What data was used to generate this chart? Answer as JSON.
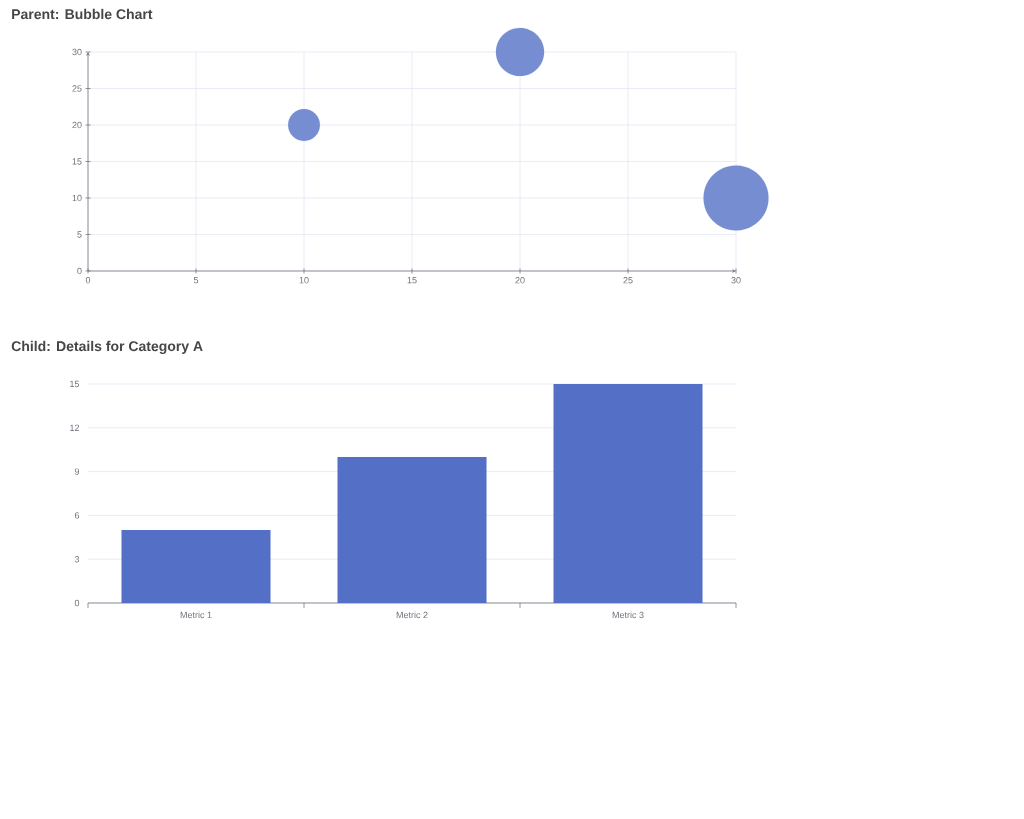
{
  "chart_data": [
    {
      "type": "bubble",
      "title": "Parent: Bubble Chart",
      "x": [
        10,
        20,
        30
      ],
      "values": [
        20,
        30,
        10
      ],
      "sizes": [
        0.24,
        0.55,
        1
      ],
      "color": "#768dd1",
      "xlim": [
        0,
        30
      ],
      "ylim": [
        0,
        30
      ],
      "xticks": [
        0,
        5,
        10,
        15,
        20,
        25,
        30
      ],
      "yticks": [
        0,
        5,
        10,
        15,
        20,
        25,
        30
      ],
      "grid": true
    },
    {
      "type": "bar",
      "title": "Child: Details for Category A",
      "categories": [
        "Metric 1",
        "Metric 2",
        "Metric 3"
      ],
      "values": [
        5,
        10,
        15
      ],
      "color": "#5470c6",
      "ylim": [
        0,
        15
      ],
      "yticks": [
        0,
        3,
        6,
        9,
        12,
        15
      ],
      "grid": "y"
    }
  ]
}
